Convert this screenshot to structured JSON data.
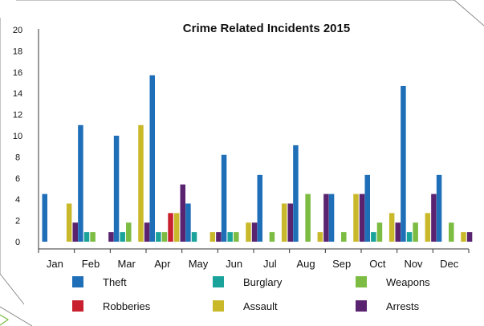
{
  "chart_data": {
    "type": "bar",
    "title": "Crime Related Incidents 2015",
    "categories": [
      "Jan",
      "Feb",
      "Mar",
      "Apr",
      "May",
      "Jun",
      "Jul",
      "Aug",
      "Sep",
      "Oct",
      "Nov",
      "Dec"
    ],
    "ylim": [
      0,
      20
    ],
    "yticks": [
      "0",
      "2",
      "4",
      "6",
      "8",
      "10",
      "12",
      "14",
      "16",
      "18",
      "20"
    ],
    "legend_position": "bottom",
    "grid": false,
    "series": [
      {
        "name": "Theft",
        "color": "#1f6fb8",
        "values": [
          4.5,
          11,
          10,
          15.7,
          3.6,
          8.2,
          6.3,
          9.1,
          4.5,
          6.3,
          14.7,
          6.3
        ]
      },
      {
        "name": "Burglary",
        "color": "#1aa39a",
        "values": [
          0,
          0.9,
          0.9,
          0.9,
          0.9,
          0.9,
          0,
          0,
          0,
          0.9,
          0.9,
          0
        ]
      },
      {
        "name": "Weapons",
        "color": "#7cbc42",
        "values": [
          0,
          0.9,
          1.8,
          0.9,
          0,
          0.9,
          0.9,
          4.5,
          0.9,
          1.8,
          1.8,
          1.8
        ]
      },
      {
        "name": "Robberies",
        "color": "#c8202f",
        "values": [
          0,
          0,
          0,
          2.7,
          0,
          0,
          0,
          0,
          0,
          0,
          0,
          0
        ]
      },
      {
        "name": "Assault",
        "color": "#c9b92a",
        "values": [
          3.6,
          0,
          11,
          2.7,
          0.9,
          1.8,
          3.6,
          0.9,
          4.5,
          2.7,
          2.7,
          0.9
        ]
      },
      {
        "name": "Arrests",
        "color": "#5a2370",
        "values": [
          1.8,
          0.9,
          1.8,
          5.4,
          0.9,
          1.8,
          3.6,
          4.5,
          4.5,
          1.8,
          4.5,
          0.9
        ]
      }
    ]
  },
  "legend_order": [
    "Theft",
    "Burglary",
    "Weapons",
    "Robberies",
    "Assault",
    "Arrests"
  ],
  "frame_color": "#8a8a8a",
  "accent_color": "#7cbc42"
}
